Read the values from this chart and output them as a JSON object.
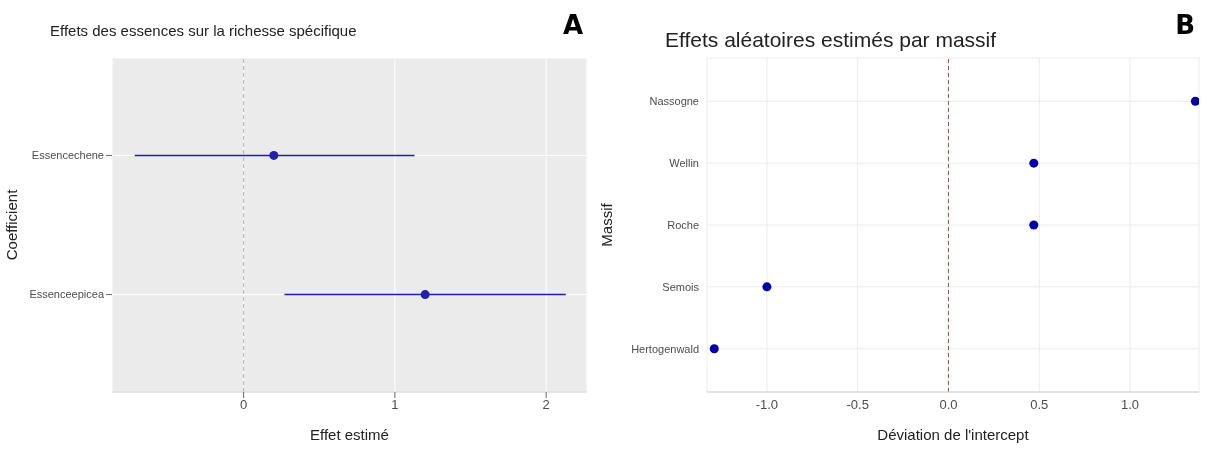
{
  "chart_data": [
    {
      "type": "scatter",
      "orientation": "horizontal",
      "title": "Effets des essences sur la richesse spécifique",
      "xlabel": "Effet estimé",
      "ylabel": "Coefficient",
      "annotations": [
        "A"
      ],
      "categories": [
        "Essencechene",
        "Essenceepicea"
      ],
      "values": [
        0.2,
        1.2
      ],
      "errors": [
        [
          0.92,
          0.93
        ],
        [
          0.93,
          0.93
        ]
      ],
      "color": "#1f1fb0",
      "marker": "circle",
      "xlim": [
        -0.87,
        2.27
      ],
      "xticks": [
        0,
        1,
        2
      ],
      "grid": true,
      "ref_lines": [
        {
          "axis": "x",
          "value": 0,
          "color": "#b3b3b3",
          "line_style": "dashed"
        }
      ]
    },
    {
      "type": "scatter",
      "orientation": "horizontal",
      "title": "Effets aléatoires estimés par massif",
      "xlabel": "Déviation de l'intercept",
      "ylabel": "Massif",
      "annotations": [
        "B"
      ],
      "categories": [
        "Nassogne",
        "Wellin",
        "Roche",
        "Semois",
        "Hertogenwald"
      ],
      "values": [
        1.36,
        0.47,
        0.47,
        -1.0,
        -1.29
      ],
      "color": "#0000aa",
      "marker": "circle",
      "xlim": [
        -1.33,
        1.38
      ],
      "xticks": [
        {
          "value": -1,
          "label": "-1.0"
        },
        {
          "value": -0.5,
          "label": "-0.5"
        },
        {
          "value": 0,
          "label": "0.0"
        },
        {
          "value": 0.5,
          "label": "0.5"
        },
        {
          "value": 1,
          "label": "1.0"
        }
      ],
      "grid": true,
      "ref_lines": [
        {
          "axis": "x",
          "value": 0,
          "color": "#a0522d",
          "line_style": "dashed"
        }
      ]
    }
  ]
}
